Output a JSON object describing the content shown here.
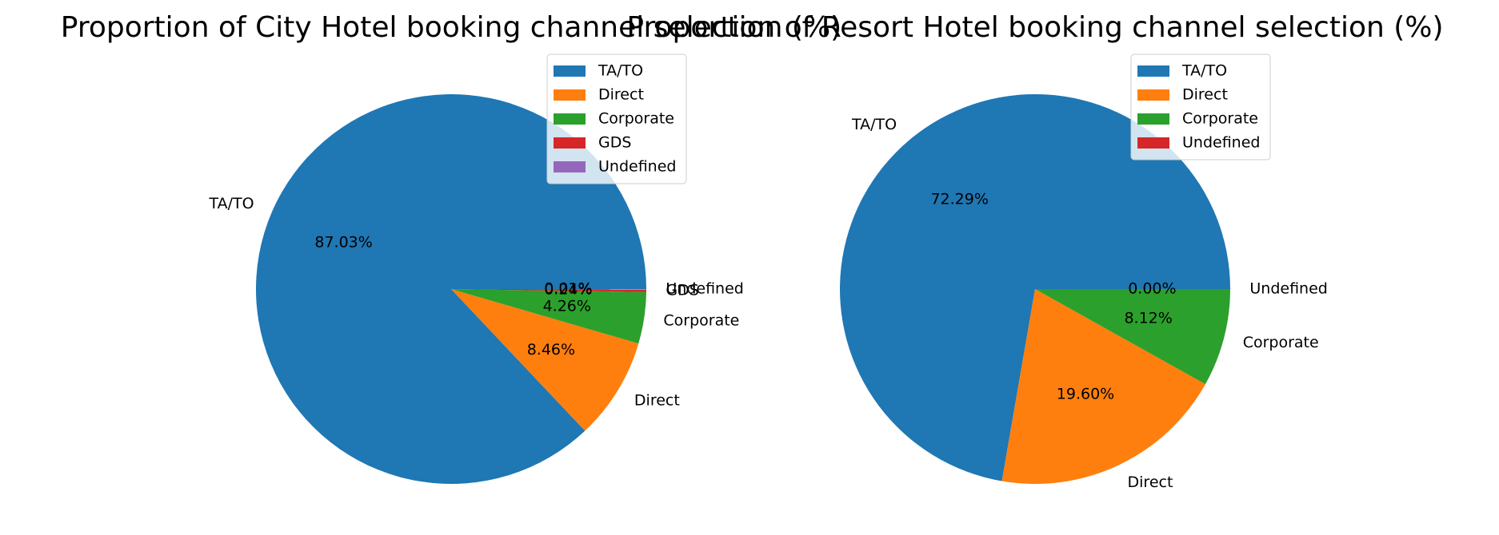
{
  "chart_data": [
    {
      "type": "pie",
      "title": "Proportion of City Hotel booking channel selection (%)",
      "categories": [
        "TA/TO",
        "Direct",
        "Corporate",
        "GDS",
        "Undefined"
      ],
      "values": [
        87.03,
        8.46,
        4.26,
        0.24,
        0.01
      ],
      "value_labels": [
        "87.03%",
        "8.46%",
        "4.26%",
        "0.24%",
        "0.01%"
      ],
      "colors": [
        "#1f77b4",
        "#ff7f0e",
        "#2ca02c",
        "#d62728",
        "#9467bd"
      ],
      "legend": "upper right"
    },
    {
      "type": "pie",
      "title": "Proportion of Resort Hotel booking channel selection (%)",
      "categories": [
        "TA/TO",
        "Direct",
        "Corporate",
        "Undefined"
      ],
      "values": [
        72.29,
        19.6,
        8.12,
        0.0
      ],
      "value_labels": [
        "72.29%",
        "19.60%",
        "8.12%",
        "0.00%"
      ],
      "colors": [
        "#1f77b4",
        "#ff7f0e",
        "#2ca02c",
        "#d62728"
      ],
      "legend": "upper right"
    }
  ]
}
